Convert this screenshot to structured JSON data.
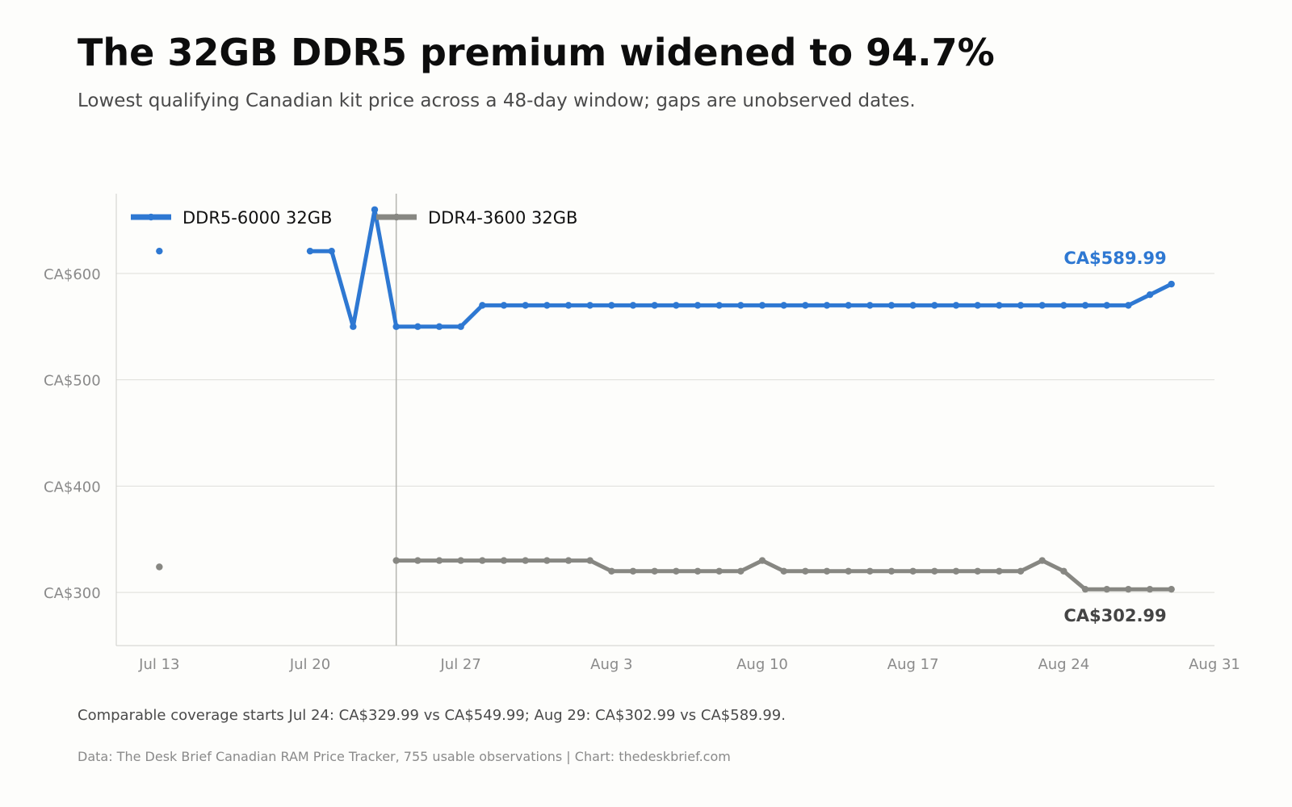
{
  "title": "The 32GB DDR5 premium widened to 94.7%",
  "subtitle": "Lowest qualifying Canadian kit price across a 48-day window; gaps are unobserved dates.",
  "footnote": "Comparable coverage starts Jul 24: CA$329.99 vs CA$549.99; Aug 29: CA$302.99 vs CA$589.99.",
  "source": "Data: The Desk Brief Canadian RAM Price Tracker, 755 usable observations | Chart: thedeskbrief.com",
  "chart_data": {
    "type": "line",
    "x_axis": {
      "kind": "date",
      "min": "Jul 11",
      "max": "Aug 31",
      "ticks": [
        {
          "date": "Jul 13",
          "label": "Jul 13"
        },
        {
          "date": "Jul 20",
          "label": "Jul 20"
        },
        {
          "date": "Jul 27",
          "label": "Jul 27"
        },
        {
          "date": "Aug 3",
          "label": "Aug 3"
        },
        {
          "date": "Aug 10",
          "label": "Aug 10"
        },
        {
          "date": "Aug 17",
          "label": "Aug 17"
        },
        {
          "date": "Aug 24",
          "label": "Aug 24"
        },
        {
          "date": "Aug 31",
          "label": "Aug 31"
        }
      ]
    },
    "y_axis": {
      "min": 250,
      "max": 675,
      "ticks": [
        {
          "value": 300,
          "label": "CA$300"
        },
        {
          "value": 400,
          "label": "CA$400"
        },
        {
          "value": 500,
          "label": "CA$500"
        },
        {
          "value": 600,
          "label": "CA$600"
        }
      ]
    },
    "grid": "horizontal",
    "legend_position": "top-left",
    "reference_line": {
      "date": "Jul 24"
    },
    "series": [
      {
        "name": "DDR5-6000 32GB",
        "color": "#2e78d2",
        "end_label": "CA$589.99",
        "points": [
          {
            "x": "Jul 13",
            "y": 620.99
          },
          {
            "x": "Jul 20",
            "y": 620.99
          },
          {
            "x": "Jul 21",
            "y": 620.99
          },
          {
            "x": "Jul 22",
            "y": 549.99
          },
          {
            "x": "Jul 23",
            "y": 659.99
          },
          {
            "x": "Jul 24",
            "y": 549.99
          },
          {
            "x": "Jul 25",
            "y": 549.99
          },
          {
            "x": "Jul 26",
            "y": 549.99
          },
          {
            "x": "Jul 27",
            "y": 549.99
          },
          {
            "x": "Jul 28",
            "y": 569.99
          },
          {
            "x": "Jul 29",
            "y": 569.99
          },
          {
            "x": "Jul 30",
            "y": 569.99
          },
          {
            "x": "Jul 31",
            "y": 569.99
          },
          {
            "x": "Aug 1",
            "y": 569.99
          },
          {
            "x": "Aug 2",
            "y": 569.99
          },
          {
            "x": "Aug 3",
            "y": 569.99
          },
          {
            "x": "Aug 4",
            "y": 569.99
          },
          {
            "x": "Aug 5",
            "y": 569.99
          },
          {
            "x": "Aug 6",
            "y": 569.99
          },
          {
            "x": "Aug 7",
            "y": 569.99
          },
          {
            "x": "Aug 8",
            "y": 569.99
          },
          {
            "x": "Aug 9",
            "y": 569.99
          },
          {
            "x": "Aug 10",
            "y": 569.99
          },
          {
            "x": "Aug 11",
            "y": 569.99
          },
          {
            "x": "Aug 12",
            "y": 569.99
          },
          {
            "x": "Aug 13",
            "y": 569.99
          },
          {
            "x": "Aug 14",
            "y": 569.99
          },
          {
            "x": "Aug 15",
            "y": 569.99
          },
          {
            "x": "Aug 16",
            "y": 569.99
          },
          {
            "x": "Aug 17",
            "y": 569.99
          },
          {
            "x": "Aug 18",
            "y": 569.99
          },
          {
            "x": "Aug 19",
            "y": 569.99
          },
          {
            "x": "Aug 20",
            "y": 569.99
          },
          {
            "x": "Aug 21",
            "y": 569.99
          },
          {
            "x": "Aug 22",
            "y": 569.99
          },
          {
            "x": "Aug 23",
            "y": 569.99
          },
          {
            "x": "Aug 24",
            "y": 569.99
          },
          {
            "x": "Aug 25",
            "y": 569.99
          },
          {
            "x": "Aug 26",
            "y": 569.99
          },
          {
            "x": "Aug 27",
            "y": 569.99
          },
          {
            "x": "Aug 28",
            "y": 579.99
          },
          {
            "x": "Aug 29",
            "y": 589.99
          }
        ]
      },
      {
        "name": "DDR4-3600 32GB",
        "color": "#878782",
        "end_label": "CA$302.99",
        "end_label_color": "#444444",
        "points": [
          {
            "x": "Jul 13",
            "y": 323.99
          },
          {
            "x": "Jul 24",
            "y": 329.99
          },
          {
            "x": "Jul 25",
            "y": 329.99
          },
          {
            "x": "Jul 26",
            "y": 329.99
          },
          {
            "x": "Jul 27",
            "y": 329.99
          },
          {
            "x": "Jul 28",
            "y": 329.99
          },
          {
            "x": "Jul 29",
            "y": 329.99
          },
          {
            "x": "Jul 30",
            "y": 329.99
          },
          {
            "x": "Jul 31",
            "y": 329.99
          },
          {
            "x": "Aug 1",
            "y": 329.99
          },
          {
            "x": "Aug 2",
            "y": 329.99
          },
          {
            "x": "Aug 3",
            "y": 319.99
          },
          {
            "x": "Aug 4",
            "y": 319.99
          },
          {
            "x": "Aug 5",
            "y": 319.99
          },
          {
            "x": "Aug 6",
            "y": 319.99
          },
          {
            "x": "Aug 7",
            "y": 319.99
          },
          {
            "x": "Aug 8",
            "y": 319.99
          },
          {
            "x": "Aug 9",
            "y": 319.99
          },
          {
            "x": "Aug 10",
            "y": 329.99
          },
          {
            "x": "Aug 11",
            "y": 319.99
          },
          {
            "x": "Aug 12",
            "y": 319.99
          },
          {
            "x": "Aug 13",
            "y": 319.99
          },
          {
            "x": "Aug 14",
            "y": 319.99
          },
          {
            "x": "Aug 15",
            "y": 319.99
          },
          {
            "x": "Aug 16",
            "y": 319.99
          },
          {
            "x": "Aug 17",
            "y": 319.99
          },
          {
            "x": "Aug 18",
            "y": 319.99
          },
          {
            "x": "Aug 19",
            "y": 319.99
          },
          {
            "x": "Aug 20",
            "y": 319.99
          },
          {
            "x": "Aug 21",
            "y": 319.99
          },
          {
            "x": "Aug 22",
            "y": 319.99
          },
          {
            "x": "Aug 23",
            "y": 329.99
          },
          {
            "x": "Aug 24",
            "y": 319.99
          },
          {
            "x": "Aug 25",
            "y": 302.99
          },
          {
            "x": "Aug 26",
            "y": 302.99
          },
          {
            "x": "Aug 27",
            "y": 302.99
          },
          {
            "x": "Aug 28",
            "y": 302.99
          },
          {
            "x": "Aug 29",
            "y": 302.99
          }
        ]
      }
    ]
  }
}
